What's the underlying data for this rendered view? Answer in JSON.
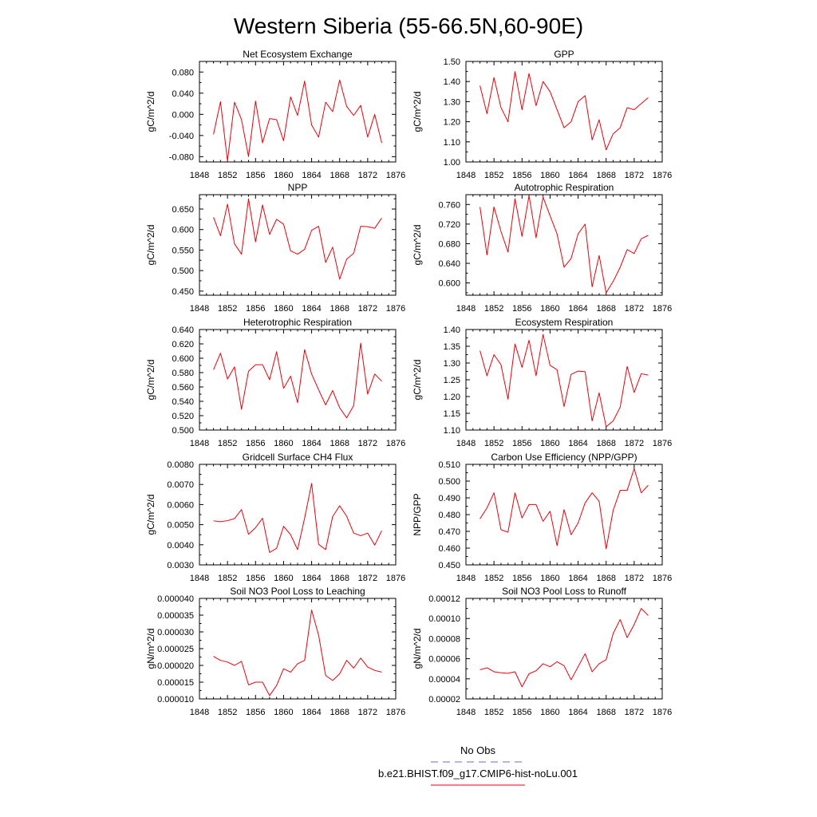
{
  "page_title": "Western Siberia (55-66.5N,60-90E)",
  "legend": {
    "entries": [
      {
        "label": "No Obs",
        "color": "#6a6ad0",
        "dash": true
      },
      {
        "label": "b.e21.BHIST.f09_g17.CMIP6-hist-noLu.001",
        "color": "#e8000b",
        "dash": false
      }
    ]
  },
  "line_color": "#e8000b",
  "chart_data": [
    {
      "type": "line",
      "title": "Net Ecosystem Exchange",
      "xlabel": "",
      "ylabel": "gC/m^2/d",
      "xlim": [
        1848,
        1876
      ],
      "ylim": [
        -0.09,
        0.1
      ],
      "xticks": [
        "1848",
        "1852",
        "1856",
        "1860",
        "1864",
        "1868",
        "1872",
        "1876"
      ],
      "yticks": [
        "-0.080",
        "-0.040",
        "0.000",
        "0.040",
        "0.080"
      ],
      "x": [
        1850,
        1851,
        1852,
        1853,
        1854,
        1855,
        1856,
        1857,
        1858,
        1859,
        1860,
        1861,
        1862,
        1863,
        1864,
        1865,
        1866,
        1867,
        1868,
        1869,
        1870,
        1871,
        1872,
        1873,
        1874
      ],
      "series": [
        {
          "values": [
            -0.038,
            0.024,
            -0.088,
            0.023,
            -0.01,
            -0.08,
            0.025,
            -0.054,
            -0.008,
            -0.01,
            -0.05,
            0.033,
            -0.002,
            0.063,
            -0.02,
            -0.043,
            0.023,
            0.005,
            0.065,
            0.015,
            -0.002,
            0.017,
            -0.043,
            0.0,
            -0.054
          ]
        }
      ]
    },
    {
      "type": "line",
      "title": "GPP",
      "xlabel": "",
      "ylabel": "gC/m^2/d",
      "xlim": [
        1848,
        1876
      ],
      "ylim": [
        1.0,
        1.5
      ],
      "xticks": [
        "1848",
        "1852",
        "1856",
        "1860",
        "1864",
        "1868",
        "1872",
        "1876"
      ],
      "yticks": [
        "1.00",
        "1.10",
        "1.20",
        "1.30",
        "1.40",
        "1.50"
      ],
      "x": [
        1850,
        1851,
        1852,
        1853,
        1854,
        1855,
        1856,
        1857,
        1858,
        1859,
        1860,
        1861,
        1862,
        1863,
        1864,
        1865,
        1866,
        1867,
        1868,
        1869,
        1870,
        1871,
        1872,
        1873,
        1874
      ],
      "series": [
        {
          "values": [
            1.38,
            1.24,
            1.42,
            1.27,
            1.2,
            1.45,
            1.26,
            1.44,
            1.28,
            1.4,
            1.35,
            1.26,
            1.17,
            1.2,
            1.3,
            1.33,
            1.11,
            1.21,
            1.06,
            1.14,
            1.17,
            1.27,
            1.26,
            1.29,
            1.32
          ]
        }
      ]
    },
    {
      "type": "line",
      "title": "NPP",
      "xlabel": "",
      "ylabel": "gC/m^2/d",
      "xlim": [
        1848,
        1876
      ],
      "ylim": [
        0.44,
        0.685
      ],
      "xticks": [
        "1848",
        "1852",
        "1856",
        "1860",
        "1864",
        "1868",
        "1872",
        "1876"
      ],
      "yticks": [
        "0.450",
        "0.500",
        "0.550",
        "0.600",
        "0.650"
      ],
      "x": [
        1850,
        1851,
        1852,
        1853,
        1854,
        1855,
        1856,
        1857,
        1858,
        1859,
        1860,
        1861,
        1862,
        1863,
        1864,
        1865,
        1866,
        1867,
        1868,
        1869,
        1870,
        1871,
        1872,
        1873,
        1874
      ],
      "series": [
        {
          "values": [
            0.63,
            0.585,
            0.662,
            0.565,
            0.54,
            0.675,
            0.57,
            0.66,
            0.588,
            0.625,
            0.613,
            0.548,
            0.54,
            0.552,
            0.598,
            0.608,
            0.52,
            0.557,
            0.479,
            0.528,
            0.542,
            0.608,
            0.607,
            0.603,
            0.628
          ]
        }
      ]
    },
    {
      "type": "line",
      "title": "Autotrophic Respiration",
      "xlabel": "",
      "ylabel": "gC/m^2/d",
      "xlim": [
        1848,
        1876
      ],
      "ylim": [
        0.575,
        0.78
      ],
      "xticks": [
        "1848",
        "1852",
        "1856",
        "1860",
        "1864",
        "1868",
        "1872",
        "1876"
      ],
      "yticks": [
        "0.600",
        "0.640",
        "0.680",
        "0.720",
        "0.760"
      ],
      "x": [
        1850,
        1851,
        1852,
        1853,
        1854,
        1855,
        1856,
        1857,
        1858,
        1859,
        1860,
        1861,
        1862,
        1863,
        1864,
        1865,
        1866,
        1867,
        1868,
        1869,
        1870,
        1871,
        1872,
        1873,
        1874
      ],
      "series": [
        {
          "values": [
            0.755,
            0.657,
            0.755,
            0.705,
            0.663,
            0.772,
            0.695,
            0.778,
            0.692,
            0.775,
            0.737,
            0.7,
            0.632,
            0.65,
            0.7,
            0.72,
            0.592,
            0.656,
            0.58,
            0.603,
            0.632,
            0.668,
            0.66,
            0.69,
            0.697
          ]
        }
      ]
    },
    {
      "type": "line",
      "title": "Heterotrophic Respiration",
      "xlabel": "",
      "ylabel": "gC/m^2/d",
      "xlim": [
        1848,
        1876
      ],
      "ylim": [
        0.5,
        0.64
      ],
      "xticks": [
        "1848",
        "1852",
        "1856",
        "1860",
        "1864",
        "1868",
        "1872",
        "1876"
      ],
      "yticks": [
        "0.500",
        "0.520",
        "0.540",
        "0.560",
        "0.580",
        "0.600",
        "0.620",
        "0.640"
      ],
      "x": [
        1850,
        1851,
        1852,
        1853,
        1854,
        1855,
        1856,
        1857,
        1858,
        1859,
        1860,
        1861,
        1862,
        1863,
        1864,
        1865,
        1866,
        1867,
        1868,
        1869,
        1870,
        1871,
        1872,
        1873,
        1874
      ],
      "series": [
        {
          "values": [
            0.584,
            0.607,
            0.571,
            0.588,
            0.529,
            0.582,
            0.591,
            0.591,
            0.57,
            0.609,
            0.558,
            0.575,
            0.538,
            0.612,
            0.578,
            0.556,
            0.535,
            0.555,
            0.531,
            0.517,
            0.534,
            0.621,
            0.55,
            0.578,
            0.568
          ]
        }
      ]
    },
    {
      "type": "line",
      "title": "Ecosystem Respiration",
      "xlabel": "",
      "ylabel": "gC/m^2/d",
      "xlim": [
        1848,
        1876
      ],
      "ylim": [
        1.1,
        1.4
      ],
      "xticks": [
        "1848",
        "1852",
        "1856",
        "1860",
        "1864",
        "1868",
        "1872",
        "1876"
      ],
      "yticks": [
        "1.10",
        "1.15",
        "1.20",
        "1.25",
        "1.30",
        "1.35",
        "1.40"
      ],
      "x": [
        1850,
        1851,
        1852,
        1853,
        1854,
        1855,
        1856,
        1857,
        1858,
        1859,
        1860,
        1861,
        1862,
        1863,
        1864,
        1865,
        1866,
        1867,
        1868,
        1869,
        1870,
        1871,
        1872,
        1873,
        1874
      ],
      "series": [
        {
          "values": [
            1.337,
            1.262,
            1.325,
            1.295,
            1.192,
            1.357,
            1.287,
            1.368,
            1.262,
            1.385,
            1.293,
            1.28,
            1.17,
            1.266,
            1.276,
            1.274,
            1.127,
            1.211,
            1.11,
            1.127,
            1.168,
            1.29,
            1.212,
            1.268,
            1.264
          ]
        }
      ]
    },
    {
      "type": "line",
      "title": "Gridcell Surface CH4 Flux",
      "xlabel": "",
      "ylabel": "gC/m^2/d",
      "xlim": [
        1848,
        1876
      ],
      "ylim": [
        0.003,
        0.008
      ],
      "xticks": [
        "1848",
        "1852",
        "1856",
        "1860",
        "1864",
        "1868",
        "1872",
        "1876"
      ],
      "yticks": [
        "0.0030",
        "0.0040",
        "0.0050",
        "0.0060",
        "0.0070",
        "0.0080"
      ],
      "x": [
        1850,
        1851,
        1852,
        1853,
        1854,
        1855,
        1856,
        1857,
        1858,
        1859,
        1860,
        1861,
        1862,
        1863,
        1864,
        1865,
        1866,
        1867,
        1868,
        1869,
        1870,
        1871,
        1872,
        1873,
        1874
      ],
      "series": [
        {
          "values": [
            0.00519,
            0.00515,
            0.0052,
            0.0053,
            0.00575,
            0.00452,
            0.00485,
            0.00532,
            0.00362,
            0.00382,
            0.00492,
            0.0045,
            0.00376,
            0.00532,
            0.00705,
            0.00402,
            0.00376,
            0.0054,
            0.00594,
            0.00542,
            0.00458,
            0.00445,
            0.00458,
            0.00398,
            0.0047
          ]
        }
      ]
    },
    {
      "type": "line",
      "title": "Carbon Use Efficiency (NPP/GPP)",
      "xlabel": "",
      "ylabel": "NPP/GPP",
      "xlim": [
        1848,
        1876
      ],
      "ylim": [
        0.45,
        0.51
      ],
      "xticks": [
        "1848",
        "1852",
        "1856",
        "1860",
        "1864",
        "1868",
        "1872",
        "1876"
      ],
      "yticks": [
        "0.450",
        "0.460",
        "0.470",
        "0.480",
        "0.490",
        "0.500",
        "0.510"
      ],
      "x": [
        1850,
        1851,
        1852,
        1853,
        1854,
        1855,
        1856,
        1857,
        1858,
        1859,
        1860,
        1861,
        1862,
        1863,
        1864,
        1865,
        1866,
        1867,
        1868,
        1869,
        1870,
        1871,
        1872,
        1873,
        1874
      ],
      "series": [
        {
          "values": [
            0.4775,
            0.484,
            0.493,
            0.471,
            0.4695,
            0.493,
            0.478,
            0.486,
            0.486,
            0.476,
            0.482,
            0.4615,
            0.483,
            0.468,
            0.475,
            0.487,
            0.493,
            0.488,
            0.4595,
            0.4825,
            0.4945,
            0.4945,
            0.5075,
            0.493,
            0.4975
          ]
        }
      ]
    },
    {
      "type": "line",
      "title": "Soil NO3 Pool Loss to Leaching",
      "xlabel": "",
      "ylabel": "gN/m^2/d",
      "xlim": [
        1848,
        1876
      ],
      "ylim": [
        1e-05,
        4e-05
      ],
      "xticks": [
        "1848",
        "1852",
        "1856",
        "1860",
        "1864",
        "1868",
        "1872",
        "1876"
      ],
      "yticks": [
        "0.000010",
        "0.000015",
        "0.000020",
        "0.000025",
        "0.000030",
        "0.000035",
        "0.000040"
      ],
      "x": [
        1850,
        1851,
        1852,
        1853,
        1854,
        1855,
        1856,
        1857,
        1858,
        1859,
        1860,
        1861,
        1862,
        1863,
        1864,
        1865,
        1866,
        1867,
        1868,
        1869,
        1870,
        1871,
        1872,
        1873,
        1874
      ],
      "series": [
        {
          "values": [
            2.27e-05,
            2.15e-05,
            2.1e-05,
            2e-05,
            2.12e-05,
            1.42e-05,
            1.5e-05,
            1.5e-05,
            1.1e-05,
            1.4e-05,
            1.9e-05,
            1.8e-05,
            2.05e-05,
            2.15e-05,
            3.65e-05,
            2.9e-05,
            1.7e-05,
            1.55e-05,
            1.75e-05,
            2.15e-05,
            1.92e-05,
            2.22e-05,
            1.95e-05,
            1.85e-05,
            1.8e-05
          ]
        }
      ]
    },
    {
      "type": "line",
      "title": "Soil NO3 Pool Loss to Runoff",
      "xlabel": "",
      "ylabel": "gN/m^2/d",
      "xlim": [
        1848,
        1876
      ],
      "ylim": [
        2e-05,
        0.00012
      ],
      "xticks": [
        "1848",
        "1852",
        "1856",
        "1860",
        "1864",
        "1868",
        "1872",
        "1876"
      ],
      "yticks": [
        "0.00002",
        "0.00004",
        "0.00006",
        "0.00008",
        "0.00010",
        "0.00012"
      ],
      "x": [
        1850,
        1851,
        1852,
        1853,
        1854,
        1855,
        1856,
        1857,
        1858,
        1859,
        1860,
        1861,
        1862,
        1863,
        1864,
        1865,
        1866,
        1867,
        1868,
        1869,
        1870,
        1871,
        1872,
        1873,
        1874
      ],
      "series": [
        {
          "values": [
            4.9e-05,
            5.1e-05,
            4.7e-05,
            4.6e-05,
            4.55e-05,
            4.7e-05,
            3.2e-05,
            4.5e-05,
            4.8e-05,
            5.5e-05,
            5.2e-05,
            5.7e-05,
            5.3e-05,
            3.9e-05,
            5.2e-05,
            6.5e-05,
            4.7e-05,
            5.5e-05,
            5.9e-05,
            8.5e-05,
            9.9e-05,
            8.1e-05,
            9.4e-05,
            0.00011,
            0.000103
          ]
        }
      ]
    }
  ]
}
